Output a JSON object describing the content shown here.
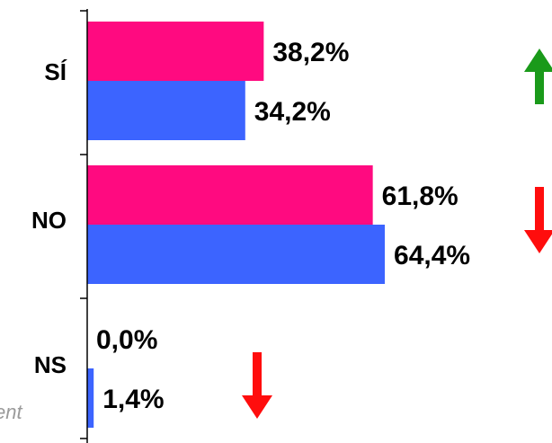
{
  "chart_data": {
    "type": "bar",
    "orientation": "horizontal",
    "categories": [
      "SÍ",
      "NO",
      "NS"
    ],
    "series": [
      {
        "values": [
          38.2,
          61.8,
          0.0
        ],
        "labels": [
          "38,2%",
          "61,8%",
          "0,0%"
        ]
      },
      {
        "values": [
          34.2,
          64.4,
          1.4
        ],
        "labels": [
          "34,2%",
          "64,4%",
          "1,4%"
        ]
      }
    ],
    "trend_arrows": [
      "up",
      "down",
      "down"
    ],
    "colors": {
      "series_1": "#ff0a80",
      "series_2": "#3c64ff",
      "arrow_up": "#1a9a1a",
      "arrow_down": "#ff0d0d"
    },
    "xlim": [
      0,
      100
    ],
    "grid": false,
    "legend": "none"
  },
  "footnote_fragment": "ent"
}
